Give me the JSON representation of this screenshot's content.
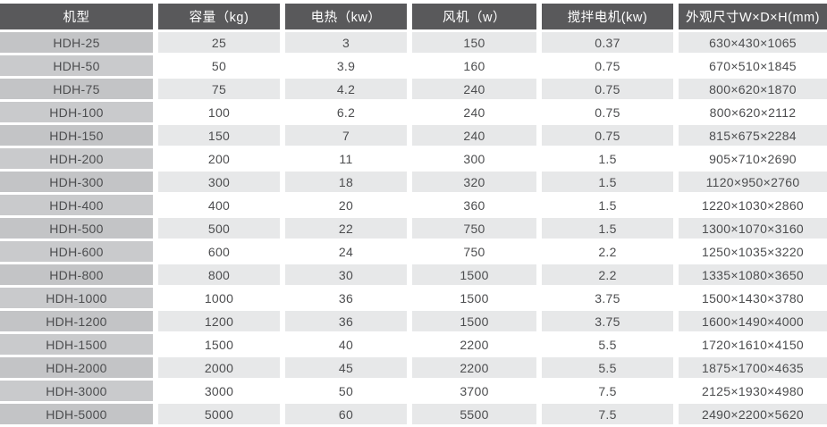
{
  "colors": {
    "header_bg": "#59595b",
    "header_text": "#ffffff",
    "stripe_row_bg": "#e7e8e9",
    "model_column_bg": "#c6c7c9",
    "body_text": "#4c4d4f"
  },
  "table": {
    "columns": [
      "机型",
      "容量（kg)",
      "电热（kw）",
      "风机（w）",
      "搅拌电机(kw)",
      "外观尺寸W×D×H(mm)"
    ]
  },
  "chart_data": {
    "type": "table",
    "title": "",
    "columns": [
      "机型",
      "容量（kg)",
      "电热（kw）",
      "风机（w）",
      "搅拌电机(kw)",
      "外观尺寸W×D×H(mm)"
    ],
    "rows": [
      [
        "HDH-25",
        "25",
        "3",
        "150",
        "0.37",
        "630×430×1065"
      ],
      [
        "HDH-50",
        "50",
        "3.9",
        "160",
        "0.75",
        "670×510×1845"
      ],
      [
        "HDH-75",
        "75",
        "4.2",
        "240",
        "0.75",
        "800×620×1870"
      ],
      [
        "HDH-100",
        "100",
        "6.2",
        "240",
        "0.75",
        "800×620×2112"
      ],
      [
        "HDH-150",
        "150",
        "7",
        "240",
        "0.75",
        "815×675×2284"
      ],
      [
        "HDH-200",
        "200",
        "11",
        "300",
        "1.5",
        "905×710×2690"
      ],
      [
        "HDH-300",
        "300",
        "18",
        "320",
        "1.5",
        "1120×950×2760"
      ],
      [
        "HDH-400",
        "400",
        "20",
        "360",
        "1.5",
        "1220×1030×2860"
      ],
      [
        "HDH-500",
        "500",
        "22",
        "750",
        "1.5",
        "1300×1070×3160"
      ],
      [
        "HDH-600",
        "600",
        "24",
        "750",
        "2.2",
        "1250×1035×3220"
      ],
      [
        "HDH-800",
        "800",
        "30",
        "1500",
        "2.2",
        "1335×1080×3650"
      ],
      [
        "HDH-1000",
        "1000",
        "36",
        "1500",
        "3.75",
        "1500×1430×3780"
      ],
      [
        "HDH-1200",
        "1200",
        "36",
        "1500",
        "3.75",
        "1600×1490×4000"
      ],
      [
        "HDH-1500",
        "1500",
        "40",
        "2200",
        "5.5",
        "1720×1610×4150"
      ],
      [
        "HDH-2000",
        "2000",
        "45",
        "2200",
        "5.5",
        "1875×1700×4635"
      ],
      [
        "HDH-3000",
        "3000",
        "50",
        "3700",
        "7.5",
        "2125×1930×4980"
      ],
      [
        "HDH-5000",
        "5000",
        "60",
        "5500",
        "7.5",
        "2490×2200×5620"
      ]
    ]
  }
}
